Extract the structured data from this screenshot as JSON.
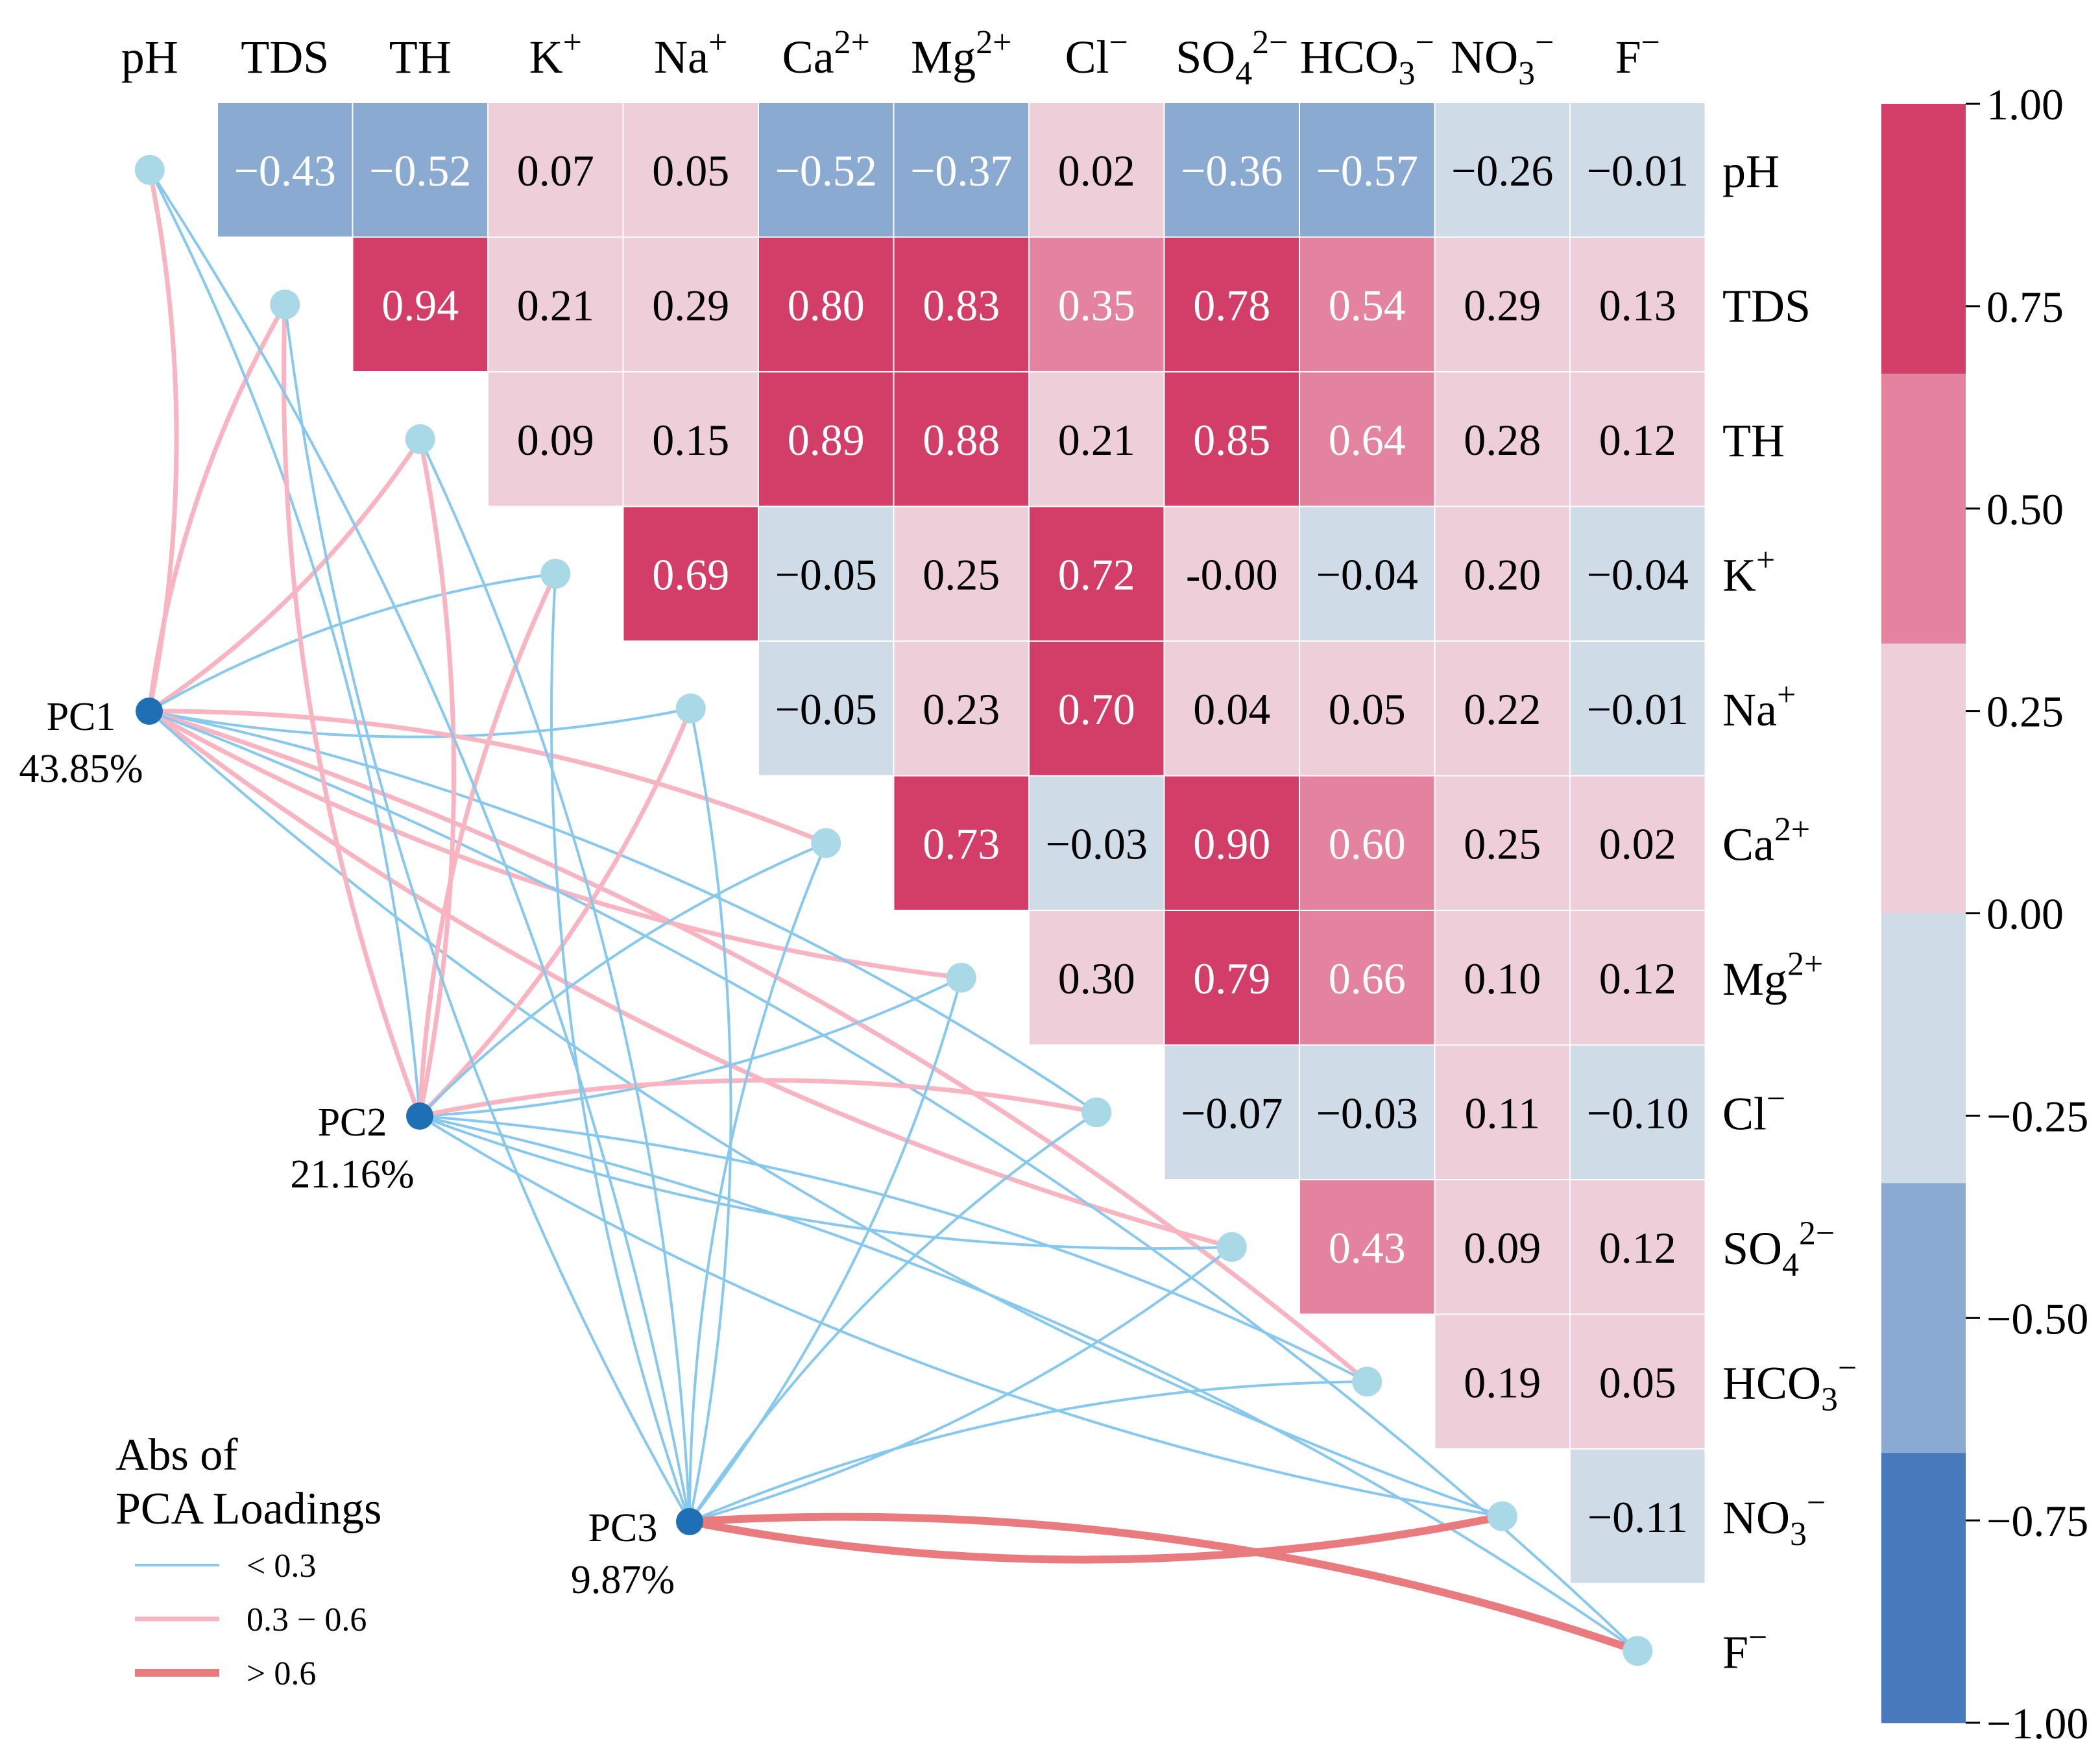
{
  "chart_data": {
    "type": "heatmap",
    "variables": [
      "pH",
      "TDS",
      "TH",
      "K+",
      "Na+",
      "Ca2+",
      "Mg2+",
      "Cl-",
      "SO42-",
      "HCO3-",
      "NO3-",
      "F-"
    ],
    "labels": [
      {
        "base": "pH",
        "sub": "",
        "sup": ""
      },
      {
        "base": "TDS",
        "sub": "",
        "sup": ""
      },
      {
        "base": "TH",
        "sub": "",
        "sup": ""
      },
      {
        "base": "K",
        "sub": "",
        "sup": "+"
      },
      {
        "base": "Na",
        "sub": "",
        "sup": "+"
      },
      {
        "base": "Ca",
        "sub": "",
        "sup": "2+"
      },
      {
        "base": "Mg",
        "sub": "",
        "sup": "2+"
      },
      {
        "base": "Cl",
        "sub": "",
        "sup": "−"
      },
      {
        "base": "SO",
        "sub": "4",
        "sup": "2−"
      },
      {
        "base": "HCO",
        "sub": "3",
        "sup": "−"
      },
      {
        "base": "NO",
        "sub": "3",
        "sup": "−"
      },
      {
        "base": "F",
        "sub": "",
        "sup": "−"
      }
    ],
    "correlations": [
      [
        "−0.43",
        "−0.52",
        "0.07",
        "0.05",
        "−0.52",
        "−0.37",
        "0.02",
        "−0.36",
        "−0.57",
        "−0.26",
        "−0.01"
      ],
      [
        "0.94",
        "0.21",
        "0.29",
        "0.80",
        "0.83",
        "0.35",
        "0.78",
        "0.54",
        "0.29",
        "0.13"
      ],
      [
        "0.09",
        "0.15",
        "0.89",
        "0.88",
        "0.21",
        "0.85",
        "0.64",
        "0.28",
        "0.12"
      ],
      [
        "0.69",
        "−0.05",
        "0.25",
        "0.72",
        "-0.00",
        "−0.04",
        "0.20",
        "−0.04"
      ],
      [
        "−0.05",
        "0.23",
        "0.70",
        "0.04",
        "0.05",
        "0.22",
        "−0.01"
      ],
      [
        "0.73",
        "−0.03",
        "0.90",
        "0.60",
        "0.25",
        "0.02"
      ],
      [
        "0.30",
        "0.79",
        "0.66",
        "0.10",
        "0.12"
      ],
      [
        "−0.07",
        "−0.03",
        "0.11",
        "−0.10"
      ],
      [
        "0.43",
        "0.09",
        "0.12"
      ],
      [
        "0.19",
        "0.05"
      ],
      [
        "−0.11"
      ]
    ],
    "pcs": [
      {
        "name": "PC1",
        "variance": "43.85%"
      },
      {
        "name": "PC2",
        "variance": "21.16%"
      },
      {
        "name": "PC3",
        "variance": "9.87%"
      }
    ],
    "loading_classes": [
      [
        "m",
        "m",
        "m",
        "s",
        "s",
        "m",
        "m",
        "s",
        "m",
        "m",
        "s",
        "s"
      ],
      [
        "s",
        "m",
        "m",
        "m",
        "m",
        "s",
        "s",
        "m",
        "s",
        "s",
        "s",
        "s"
      ],
      [
        "s",
        "s",
        "s",
        "s",
        "s",
        "s",
        "s",
        "s",
        "s",
        "s",
        "l",
        "l"
      ]
    ],
    "colorbar": {
      "range": [
        -1,
        1
      ],
      "ticks": [
        "1.00",
        "0.75",
        "0.50",
        "0.25",
        "0.00",
        "−0.25",
        "−0.50",
        "−0.75",
        "−1.00"
      ],
      "bins": [
        "#d33e69",
        "#e383a0",
        "#eecfd9",
        "#cfdbe6",
        "#8aaad2",
        "#4779bc"
      ]
    },
    "legend": {
      "title_line1": "Abs of",
      "title_line2": "PCA Loadings",
      "items": [
        {
          "cls": "s",
          "label": "< 0.3"
        },
        {
          "cls": "m",
          "label": "0.3 − 0.6"
        },
        {
          "cls": "l",
          "label": "> 0.6"
        }
      ]
    },
    "line_styles": {
      "s": {
        "color": "#87c8ee"
      },
      "m": {
        "color": "#f8b5c1"
      },
      "l": {
        "color": "#e97a7d"
      }
    },
    "node_colors": {
      "variable": "#a9d8e6",
      "pc": "#1f6fb4"
    }
  }
}
